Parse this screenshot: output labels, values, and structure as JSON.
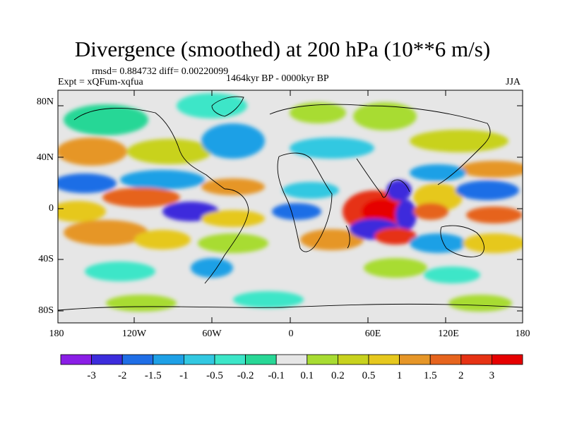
{
  "title": "Divergence (smoothed) at 200 hPa (10**6 m/s)",
  "stats": "rmsd= 0.884732 diff= 0.00220099",
  "experiment": "Expt = xQFum-xqfua",
  "period": "1464kyr BP - 0000kyr BP",
  "season": "JJA",
  "y_ticks": [
    "80N",
    "40N",
    "0",
    "40S",
    "80S"
  ],
  "x_ticks": [
    "180",
    "120W",
    "60W",
    "0",
    "60E",
    "120E",
    "180"
  ],
  "colorbar": {
    "labels": [
      "-3",
      "-2",
      "-1.5",
      "-1",
      "-0.5",
      "-0.2",
      "-0.1",
      "0.1",
      "0.2",
      "0.5",
      "1",
      "1.5",
      "2",
      "3"
    ],
    "colors": [
      "#8a1ee6",
      "#3c2cdc",
      "#1f6ee6",
      "#1ea0e6",
      "#32c8e1",
      "#3ce6c8",
      "#28d796",
      "#e6e6e6",
      "#a8dc32",
      "#c8d21e",
      "#e6c81e",
      "#e69628",
      "#e6641e",
      "#e63214",
      "#e60000"
    ]
  }
}
